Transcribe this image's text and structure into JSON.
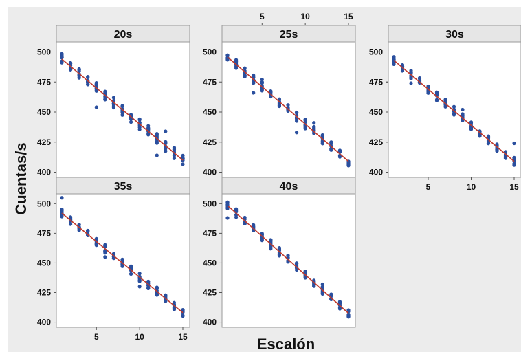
{
  "chart_data": {
    "type": "scatter",
    "xlabel": "Escalón",
    "ylabel": "Cuentas/s",
    "xticks": [
      5,
      10,
      15
    ],
    "yticks": [
      400,
      425,
      450,
      475,
      500
    ],
    "xlim": [
      0,
      15.5
    ],
    "ylim": [
      398,
      506
    ],
    "colors": {
      "points": "#2a4f9e",
      "fit": "#c0392b",
      "panel": "#ffffff",
      "strip": "#e6e6e6",
      "background": "#ececec"
    },
    "panels": [
      {
        "title": "20s",
        "fit": {
          "slope": -6.0,
          "intercept": 500.0
        },
        "spread": 4.5,
        "outliers": [
          [
            5,
            454
          ],
          [
            9,
            445
          ],
          [
            12,
            414
          ],
          [
            13,
            434
          ]
        ]
      },
      {
        "title": "25s",
        "fit": {
          "slope": -6.2,
          "intercept": 502.0
        },
        "spread": 4.0,
        "outliers": [
          [
            4,
            466
          ],
          [
            5,
            477
          ],
          [
            9,
            433
          ],
          [
            11,
            441
          ]
        ]
      },
      {
        "title": "30s",
        "fit": {
          "slope": -6.0,
          "intercept": 499.0
        },
        "spread": 3.5,
        "outliers": [
          [
            3,
            483
          ],
          [
            3,
            474
          ],
          [
            9,
            452
          ],
          [
            15,
            424
          ]
        ]
      },
      {
        "title": "35s",
        "fit": {
          "slope": -6.0,
          "intercept": 498.0
        },
        "spread": 3.5,
        "outliers": [
          [
            1,
            505
          ],
          [
            6,
            455
          ],
          [
            8,
            449
          ],
          [
            10,
            430
          ]
        ]
      },
      {
        "title": "40s",
        "fit": {
          "slope": -6.5,
          "intercept": 505.0
        },
        "spread": 3.5,
        "outliers": [
          [
            1,
            488
          ],
          [
            4,
            481
          ],
          [
            6,
            462
          ],
          [
            12,
            432
          ]
        ]
      }
    ],
    "grid": false,
    "legend": "none"
  }
}
